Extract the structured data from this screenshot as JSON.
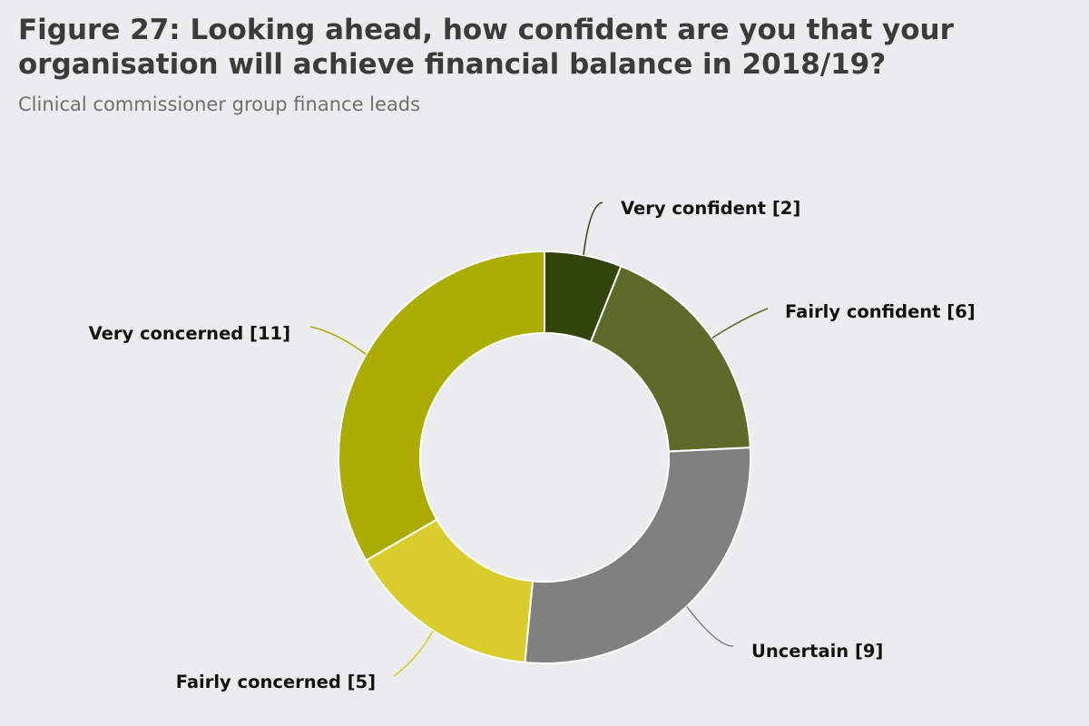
{
  "header": {
    "title": "Figure 27: Looking ahead, how confident are you that your organisation will achieve financial balance in 2018/19?",
    "subtitle": "Clinical commissioner group finance leads"
  },
  "chart_data": {
    "type": "pie",
    "variant": "donut",
    "title": "Figure 27: Looking ahead, how confident are you that your organisation will achieve financial balance in 2018/19?",
    "subtitle": "Clinical commissioner group finance leads",
    "categories": [
      "Very confident",
      "Fairly confident",
      "Uncertain",
      "Fairly concerned",
      "Very concerned"
    ],
    "values": [
      2,
      6,
      9,
      5,
      11
    ],
    "labels": [
      "Very confident [2]",
      "Fairly confident [6]",
      "Uncertain [9]",
      "Fairly concerned [5]",
      "Very concerned [11]"
    ],
    "colors": [
      "#33450d",
      "#5d6a2a",
      "#808080",
      "#d8cd2c",
      "#abac00"
    ],
    "start": "12 o'clock",
    "direction": "clockwise",
    "legend": "none",
    "label_style": "outside labels with leader lines"
  }
}
